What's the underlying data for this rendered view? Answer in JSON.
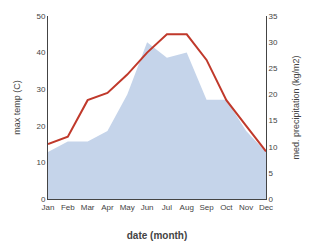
{
  "chart_data": {
    "type": "line",
    "categories": [
      "Jan",
      "Feb",
      "Mar",
      "Apr",
      "May",
      "Jun",
      "Jul",
      "Aug",
      "Sep",
      "Oct",
      "Nov",
      "Dec"
    ],
    "xlabel": "date (month)",
    "ylabel": "max temp (C)",
    "y2label": "med. precipitation (kg/m2)",
    "ylim": [
      0,
      50
    ],
    "yticks": [
      0,
      10,
      20,
      30,
      40,
      50
    ],
    "y2lim": [
      0,
      35
    ],
    "y2ticks": [
      0,
      5,
      10,
      15,
      20,
      25,
      30,
      35
    ],
    "grid": false,
    "series": [
      {
        "type": "area",
        "color": "#c5d4ea",
        "axis": "y2",
        "values": [
          9,
          11,
          11,
          13,
          20,
          30,
          27,
          28,
          19,
          19,
          13,
          9
        ]
      },
      {
        "type": "line",
        "color": "#c0392b",
        "values": [
          15,
          17,
          27,
          29,
          34,
          40,
          45,
          45,
          38,
          27,
          20,
          13
        ]
      }
    ]
  }
}
